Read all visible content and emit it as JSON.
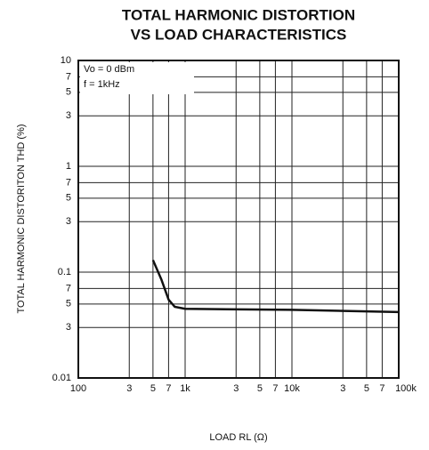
{
  "chart_data": {
    "type": "line",
    "title": [
      "TOTAL HARMONIC DISTORTION",
      "VS LOAD CHARACTERISTICS"
    ],
    "x_label": "LOAD RL (Ω)",
    "y_label": "TOTAL HARMONIC DISTORITON  THD  (%)",
    "annotations": [
      "Vo = 0 dBm",
      "f = 1kHz"
    ],
    "log_x": true,
    "log_y": true,
    "grid": true,
    "xlim": [
      100,
      100000
    ],
    "ylim": [
      0.01,
      10
    ],
    "xticks": [
      100,
      {
        "value": 300,
        "label": "3"
      },
      {
        "value": 500,
        "label": "5"
      },
      {
        "value": 700,
        "label": "7"
      },
      {
        "value": 1000,
        "label": "1k"
      },
      {
        "value": 3000,
        "label": "3"
      },
      {
        "value": 5000,
        "label": "5"
      },
      {
        "value": 7000,
        "label": "7"
      },
      {
        "value": 10000,
        "label": "10k"
      },
      {
        "value": 30000,
        "label": "3"
      },
      {
        "value": 50000,
        "label": "5"
      },
      {
        "value": 70000,
        "label": "7"
      },
      {
        "value": 100000,
        "label": "100k"
      }
    ],
    "yticks": [
      10,
      7,
      5,
      3,
      1,
      {
        "value": 0.7,
        "label": "7"
      },
      {
        "value": 0.5,
        "label": "5"
      },
      {
        "value": 0.3,
        "label": "3"
      },
      0.1,
      {
        "value": 0.07,
        "label": "7"
      },
      {
        "value": 0.05,
        "label": "5"
      },
      {
        "value": 0.03,
        "label": "3"
      },
      0.01
    ],
    "series": [
      {
        "color": "#111111",
        "x": [
          500,
          600,
          700,
          800,
          1000,
          10000,
          100000
        ],
        "values": [
          0.13,
          0.085,
          0.055,
          0.047,
          0.045,
          0.044,
          0.042
        ]
      }
    ]
  }
}
